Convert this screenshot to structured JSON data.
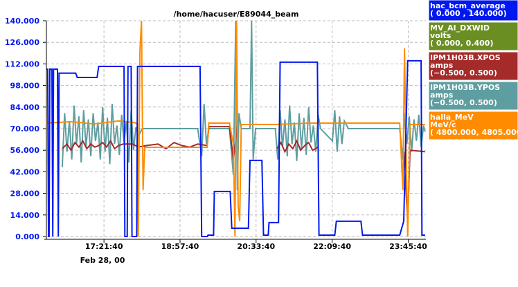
{
  "chart_data": {
    "type": "line",
    "title": "/home/hacuser/E89044_beam",
    "x_sublabel": "Feb 28, 00",
    "xlim": [
      969,
      1448
    ],
    "ylim": [
      0,
      140
    ],
    "grid": true,
    "xticks": [
      {
        "value": 1041.67,
        "label": "17:21:40"
      },
      {
        "value": 1137.67,
        "label": "18:57:40"
      },
      {
        "value": 1233.67,
        "label": "20:33:40"
      },
      {
        "value": 1329.67,
        "label": "22:09:40"
      },
      {
        "value": 1425.67,
        "label": "23:45:40"
      }
    ],
    "yticks": [
      {
        "value": 0,
        "label": "0.000"
      },
      {
        "value": 14,
        "label": "14.000"
      },
      {
        "value": 28,
        "label": "28.000"
      },
      {
        "value": 42,
        "label": "42.000"
      },
      {
        "value": 56,
        "label": "56.000"
      },
      {
        "value": 70,
        "label": "70.000"
      },
      {
        "value": 84,
        "label": "84.000"
      },
      {
        "value": 98,
        "label": "98.000"
      },
      {
        "value": 112,
        "label": "112.000"
      },
      {
        "value": 126,
        "label": "126.000"
      },
      {
        "value": 140,
        "label": "140.000"
      }
    ],
    "series": [
      {
        "name": "hac_bcm_average",
        "range": "( 0.000  ,  140.000)",
        "color": "#0018f0",
        "x": [
          969,
          970.7,
          971.6,
          972.4,
          973.4,
          976,
          977,
          978,
          983,
          984,
          985,
          1006,
          1008,
          1033,
          1035,
          1067,
          1068,
          1071,
          1072,
          1076,
          1077,
          1083,
          1084,
          1163,
          1165,
          1172,
          1173,
          1180,
          1181,
          1201,
          1203,
          1224,
          1226,
          1241,
          1243,
          1249,
          1250,
          1262,
          1264,
          1311,
          1313,
          1333,
          1335,
          1366,
          1368,
          1415,
          1420,
          1425,
          1442,
          1443,
          1447
        ],
        "values": [
          108.6,
          108.6,
          0,
          0,
          108.6,
          108.6,
          0,
          108.6,
          108.6,
          0,
          106,
          106,
          103.2,
          103.2,
          110.4,
          110.4,
          0,
          0,
          110.4,
          110.4,
          0,
          0,
          110.4,
          110.4,
          0,
          0,
          0.9,
          0.9,
          29.2,
          29.2,
          5.4,
          5.4,
          49.4,
          49.4,
          0.9,
          0.9,
          9,
          9,
          113.1,
          113.1,
          0.9,
          0.9,
          9.9,
          9.9,
          0.9,
          0.9,
          9.9,
          114,
          114,
          0.9,
          0.9
        ]
      },
      {
        "name": "MV_AI_DXWID",
        "unit": "volts",
        "range": "( 0.000,  0.400)",
        "color": "#6b8e23"
      },
      {
        "name": "IPM1H03B.XPOS",
        "unit": "amps",
        "range": "(−0.500,  0.500)",
        "color": "#a52a2a",
        "x": [
          989,
          995,
          1000,
          1005,
          1010,
          1015,
          1020,
          1025,
          1030,
          1035,
          1040,
          1045,
          1050,
          1055,
          1060,
          1066,
          1078,
          1085,
          1095,
          1110,
          1120,
          1130,
          1140,
          1150,
          1160,
          1172,
          1174,
          1200,
          1205,
          1210,
          1216,
          1260,
          1265,
          1270,
          1275,
          1280,
          1285,
          1290,
          1295,
          1300,
          1305,
          1312,
          1313,
          1420,
          1425,
          1428,
          1447
        ],
        "values": [
          57,
          60,
          56,
          61,
          58,
          62,
          57,
          60,
          58,
          59,
          61,
          58,
          62,
          57,
          59,
          60,
          60,
          58,
          59,
          60,
          57,
          61,
          59,
          58,
          60,
          59,
          71.3,
          71.3,
          50,
          71.3,
          null,
          57,
          61,
          55,
          60,
          57,
          62,
          56,
          59,
          61,
          56,
          58,
          null,
          55,
          10,
          56,
          55
        ]
      },
      {
        "name": "IPM1H03B.YPOS",
        "unit": "amps",
        "range": "(−0.500,  0.500)",
        "color": "#5f9ea0",
        "x": [
          989,
          992,
          995,
          998,
          1001,
          1004,
          1007,
          1010,
          1013,
          1016,
          1019,
          1022,
          1025,
          1028,
          1031,
          1034,
          1037,
          1040,
          1043,
          1046,
          1049,
          1052,
          1055,
          1058,
          1061,
          1064,
          1067,
          1070,
          1073,
          1076,
          1079,
          1082,
          1085,
          1090,
          1130,
          1160,
          1165,
          1168,
          1171,
          1174,
          1200,
          1205,
          1208,
          1210,
          1212,
          1215,
          1226,
          1228,
          1230,
          1233,
          1258,
          1261,
          1264,
          1267,
          1270,
          1273,
          1276,
          1279,
          1282,
          1285,
          1288,
          1291,
          1294,
          1297,
          1300,
          1303,
          1306,
          1309,
          1312,
          1315,
          1330,
          1333,
          1336,
          1339,
          1342,
          1345,
          1350,
          1415,
          1419,
          1421,
          1424,
          1427,
          1430,
          1433,
          1436,
          1439,
          1442,
          1445,
          1447
        ],
        "values": [
          45,
          80,
          55,
          75,
          50,
          85,
          60,
          78,
          48,
          82,
          58,
          76,
          52,
          80,
          62,
          74,
          50,
          84,
          55,
          77,
          47,
          86,
          60,
          72,
          53,
          79,
          61,
          75,
          48,
          82,
          56,
          71,
          65,
          70,
          70,
          70,
          52,
          86,
          60,
          70,
          70,
          40,
          140,
          30,
          80,
          70,
          70,
          140,
          50,
          70,
          70,
          50,
          82,
          58,
          76,
          52,
          85,
          60,
          74,
          49,
          80,
          57,
          77,
          53,
          84,
          61,
          72,
          55,
          79,
          70,
          62,
          82,
          55,
          78,
          60,
          75,
          70,
          70,
          50,
          80,
          60,
          78,
          55,
          76,
          62,
          79,
          58,
          72,
          68
        ]
      },
      {
        "name": "halla_MeV",
        "unit": "MeV/c",
        "range": "( 4800.000,  4805.000)",
        "color": "#ff8c00",
        "x": [
          969,
          1000,
          1030,
          1060,
          1080,
          1084,
          1085,
          1087,
          1089,
          1091,
          1093,
          1130,
          1172,
          1174,
          1200,
          1205,
          1207,
          1209,
          1211,
          1213,
          1215,
          1260,
          1300,
          1350,
          1415,
          1419,
          1421,
          1423,
          1425,
          1428,
          1447
        ],
        "values": [
          73.6,
          74.5,
          73,
          75,
          74,
          73,
          0,
          120,
          140,
          30,
          57.9,
          57.9,
          57.9,
          73.6,
          73.6,
          60,
          0,
          140,
          20,
          10,
          72.7,
          72.7,
          73.6,
          73.6,
          73.6,
          30,
          122,
          55,
          0,
          72.7,
          72.7
        ]
      }
    ]
  }
}
